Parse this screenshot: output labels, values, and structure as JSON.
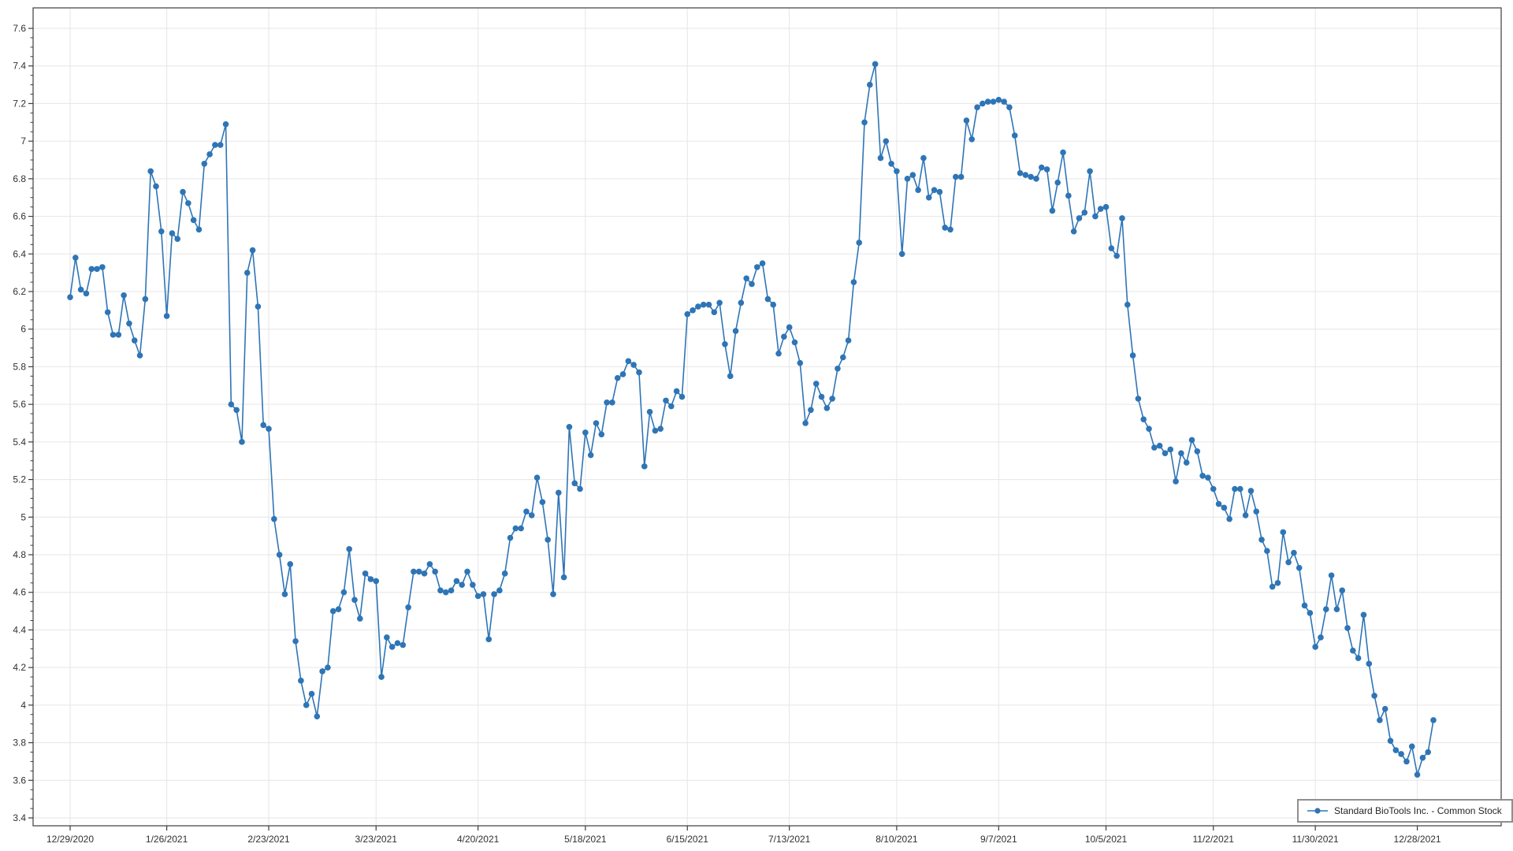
{
  "chart_data": {
    "type": "line",
    "title": "",
    "xlabel": "",
    "ylabel": "",
    "grid": true,
    "y_axis": {
      "min": 3.4,
      "max": 7.6,
      "major_step": 0.2,
      "minor_step": 0.05
    },
    "y_tick_labels": [
      "7.6",
      "7.4",
      "7.2",
      "7",
      "6.8",
      "6.6",
      "6.4",
      "6.2",
      "6",
      "5.8",
      "5.6",
      "5.4",
      "5.2",
      "5",
      "4.8",
      "4.6",
      "4.4",
      "4.2",
      "4",
      "3.8",
      "3.6",
      "3.4"
    ],
    "x_tick_labels": [
      "12/29/2020",
      "1/26/2021",
      "2/23/2021",
      "3/23/2021",
      "4/20/2021",
      "5/18/2021",
      "6/15/2021",
      "7/13/2021",
      "8/10/2021",
      "9/7/2021",
      "10/5/2021",
      "11/2/2021",
      "11/30/2021",
      "12/28/2021"
    ],
    "x_tick_indices": [
      0,
      18,
      37,
      57,
      76,
      96,
      115,
      134,
      154,
      173,
      193,
      213,
      232,
      251
    ],
    "legend": {
      "label": "Standard BioTools Inc. - Common Stock",
      "position": "bottom-right"
    },
    "colors": {
      "line": "#2e75b6",
      "marker": "#2e75b6",
      "grid": "#e6e6e6",
      "spine": "#3c3c3c",
      "tick_text": "#303030",
      "legend_border": "#8f8f8f",
      "background": "#ffffff"
    },
    "series": [
      {
        "name": "Standard BioTools Inc. - Common Stock",
        "dates": [
          "12/29/2020",
          "12/30/2020",
          "12/31/2020",
          "1/4/2021",
          "1/5/2021",
          "1/6/2021",
          "1/7/2021",
          "1/8/2021",
          "1/11/2021",
          "1/12/2021",
          "1/13/2021",
          "1/14/2021",
          "1/15/2021",
          "1/19/2021",
          "1/20/2021",
          "1/21/2021",
          "1/22/2021",
          "1/25/2021",
          "1/26/2021",
          "1/27/2021",
          "1/28/2021",
          "1/29/2021",
          "2/1/2021",
          "2/2/2021",
          "2/3/2021",
          "2/4/2021",
          "2/5/2021",
          "2/8/2021",
          "2/9/2021",
          "2/10/2021",
          "2/11/2021",
          "2/12/2021",
          "2/16/2021",
          "2/17/2021",
          "2/18/2021",
          "2/19/2021",
          "2/22/2021",
          "2/23/2021",
          "2/24/2021",
          "2/25/2021",
          "2/26/2021",
          "3/1/2021",
          "3/2/2021",
          "3/3/2021",
          "3/4/2021",
          "3/5/2021",
          "3/8/2021",
          "3/9/2021",
          "3/10/2021",
          "3/11/2021",
          "3/12/2021",
          "3/15/2021",
          "3/16/2021",
          "3/17/2021",
          "3/18/2021",
          "3/19/2021",
          "3/22/2021",
          "3/23/2021",
          "3/24/2021",
          "3/25/2021",
          "3/26/2021",
          "3/29/2021",
          "3/30/2021",
          "3/31/2021",
          "4/1/2021",
          "4/5/2021",
          "4/6/2021",
          "4/7/2021",
          "4/8/2021",
          "4/9/2021",
          "4/12/2021",
          "4/13/2021",
          "4/14/2021",
          "4/15/2021",
          "4/16/2021",
          "4/19/2021",
          "4/20/2021",
          "4/21/2021",
          "4/22/2021",
          "4/23/2021",
          "4/26/2021",
          "4/27/2021",
          "4/28/2021",
          "4/29/2021",
          "4/30/2021",
          "5/3/2021",
          "5/4/2021",
          "5/5/2021",
          "5/6/2021",
          "5/7/2021",
          "5/10/2021",
          "5/11/2021",
          "5/12/2021",
          "5/13/2021",
          "5/14/2021",
          "5/17/2021",
          "5/18/2021",
          "5/19/2021",
          "5/20/2021",
          "5/21/2021",
          "5/24/2021",
          "5/25/2021",
          "5/26/2021",
          "5/27/2021",
          "5/28/2021",
          "6/1/2021",
          "6/2/2021",
          "6/3/2021",
          "6/4/2021",
          "6/7/2021",
          "6/8/2021",
          "6/9/2021",
          "6/10/2021",
          "6/11/2021",
          "6/14/2021",
          "6/15/2021",
          "6/16/2021",
          "6/17/2021",
          "6/18/2021",
          "6/21/2021",
          "6/22/2021",
          "6/23/2021",
          "6/24/2021",
          "6/25/2021",
          "6/28/2021",
          "6/29/2021",
          "6/30/2021",
          "7/1/2021",
          "7/2/2021",
          "7/6/2021",
          "7/7/2021",
          "7/8/2021",
          "7/9/2021",
          "7/12/2021",
          "7/13/2021",
          "7/14/2021",
          "7/15/2021",
          "7/16/2021",
          "7/19/2021",
          "7/20/2021",
          "7/21/2021",
          "7/22/2021",
          "7/23/2021",
          "7/26/2021",
          "7/27/2021",
          "7/28/2021",
          "7/29/2021",
          "7/30/2021",
          "8/2/2021",
          "8/3/2021",
          "8/4/2021",
          "8/5/2021",
          "8/6/2021",
          "8/9/2021",
          "8/10/2021",
          "8/11/2021",
          "8/12/2021",
          "8/13/2021",
          "8/16/2021",
          "8/17/2021",
          "8/18/2021",
          "8/19/2021",
          "8/20/2021",
          "8/23/2021",
          "8/24/2021",
          "8/25/2021",
          "8/26/2021",
          "8/27/2021",
          "8/30/2021",
          "8/31/2021",
          "9/1/2021",
          "9/2/2021",
          "9/3/2021",
          "9/7/2021",
          "9/8/2021",
          "9/9/2021",
          "9/10/2021",
          "9/13/2021",
          "9/14/2021",
          "9/15/2021",
          "9/16/2021",
          "9/17/2021",
          "9/20/2021",
          "9/21/2021",
          "9/22/2021",
          "9/23/2021",
          "9/24/2021",
          "9/27/2021",
          "9/28/2021",
          "9/29/2021",
          "9/30/2021",
          "10/1/2021",
          "10/4/2021",
          "10/5/2021",
          "10/6/2021",
          "10/7/2021",
          "10/8/2021",
          "10/11/2021",
          "10/12/2021",
          "10/13/2021",
          "10/14/2021",
          "10/15/2021",
          "10/18/2021",
          "10/19/2021",
          "10/20/2021",
          "10/21/2021",
          "10/22/2021",
          "10/25/2021",
          "10/26/2021",
          "10/27/2021",
          "10/28/2021",
          "10/29/2021",
          "11/1/2021",
          "11/2/2021",
          "11/3/2021",
          "11/4/2021",
          "11/5/2021",
          "11/8/2021",
          "11/9/2021",
          "11/10/2021",
          "11/11/2021",
          "11/12/2021",
          "11/15/2021",
          "11/16/2021",
          "11/17/2021",
          "11/18/2021",
          "11/19/2021",
          "11/22/2021",
          "11/23/2021",
          "11/24/2021",
          "11/26/2021",
          "11/29/2021",
          "11/30/2021",
          "12/1/2021",
          "12/2/2021",
          "12/3/2021",
          "12/6/2021",
          "12/7/2021",
          "12/8/2021",
          "12/9/2021",
          "12/10/2021",
          "12/13/2021",
          "12/14/2021",
          "12/15/2021",
          "12/16/2021",
          "12/17/2021",
          "12/20/2021",
          "12/21/2021",
          "12/22/2021",
          "12/23/2021",
          "12/27/2021",
          "12/28/2021",
          "12/29/2021",
          "12/30/2021",
          "12/31/2021"
        ],
        "values": [
          6.17,
          6.38,
          6.21,
          6.19,
          6.32,
          6.32,
          6.33,
          6.09,
          5.97,
          5.97,
          6.18,
          6.03,
          5.94,
          5.86,
          6.16,
          6.84,
          6.76,
          6.52,
          6.07,
          6.51,
          6.48,
          6.73,
          6.67,
          6.58,
          6.53,
          6.88,
          6.93,
          6.98,
          6.98,
          7.09,
          5.6,
          5.57,
          5.4,
          6.3,
          6.42,
          6.12,
          5.49,
          5.47,
          4.99,
          4.8,
          4.59,
          4.75,
          4.34,
          4.13,
          4.0,
          4.06,
          3.94,
          4.18,
          4.2,
          4.5,
          4.51,
          4.6,
          4.83,
          4.56,
          4.46,
          4.7,
          4.67,
          4.66,
          4.15,
          4.36,
          4.31,
          4.33,
          4.32,
          4.52,
          4.71,
          4.71,
          4.7,
          4.75,
          4.71,
          4.61,
          4.6,
          4.61,
          4.66,
          4.64,
          4.71,
          4.64,
          4.58,
          4.59,
          4.35,
          4.59,
          4.61,
          4.7,
          4.89,
          4.94,
          4.94,
          5.03,
          5.01,
          5.21,
          5.08,
          4.88,
          4.59,
          5.13,
          4.68,
          5.48,
          5.18,
          5.15,
          5.45,
          5.33,
          5.5,
          5.44,
          5.61,
          5.61,
          5.74,
          5.76,
          5.83,
          5.81,
          5.77,
          5.27,
          5.56,
          5.46,
          5.47,
          5.62,
          5.59,
          5.67,
          5.64,
          6.08,
          6.1,
          6.12,
          6.13,
          6.13,
          6.09,
          6.14,
          5.92,
          5.75,
          5.99,
          6.14,
          6.27,
          6.24,
          6.33,
          6.35,
          6.16,
          6.13,
          5.87,
          5.96,
          6.01,
          5.93,
          5.82,
          5.5,
          5.57,
          5.71,
          5.64,
          5.58,
          5.63,
          5.79,
          5.85,
          5.94,
          6.25,
          6.46,
          7.1,
          7.3,
          7.41,
          6.91,
          7.0,
          6.88,
          6.84,
          6.4,
          6.8,
          6.82,
          6.74,
          6.91,
          6.7,
          6.74,
          6.73,
          6.54,
          6.53,
          6.81,
          6.81,
          7.11,
          7.01,
          7.18,
          7.2,
          7.21,
          7.21,
          7.22,
          7.21,
          7.18,
          7.03,
          6.83,
          6.82,
          6.81,
          6.8,
          6.86,
          6.85,
          6.63,
          6.78,
          6.94,
          6.71,
          6.52,
          6.59,
          6.62,
          6.84,
          6.6,
          6.64,
          6.65,
          6.43,
          6.39,
          6.59,
          6.13,
          5.86,
          5.63,
          5.52,
          5.47,
          5.37,
          5.38,
          5.34,
          5.36,
          5.19,
          5.34,
          5.29,
          5.41,
          5.35,
          5.22,
          5.21,
          5.15,
          5.07,
          5.05,
          4.99,
          5.15,
          5.15,
          5.01,
          5.14,
          5.03,
          4.88,
          4.82,
          4.63,
          4.65,
          4.92,
          4.76,
          4.81,
          4.73,
          4.53,
          4.49,
          4.31,
          4.36,
          4.51,
          4.69,
          4.51,
          4.61,
          4.41,
          4.29,
          4.25,
          4.48,
          4.22,
          4.05,
          3.92,
          3.98,
          3.81,
          3.76,
          3.74,
          3.7,
          3.78,
          3.63,
          3.72,
          3.75,
          3.92
        ]
      }
    ]
  }
}
